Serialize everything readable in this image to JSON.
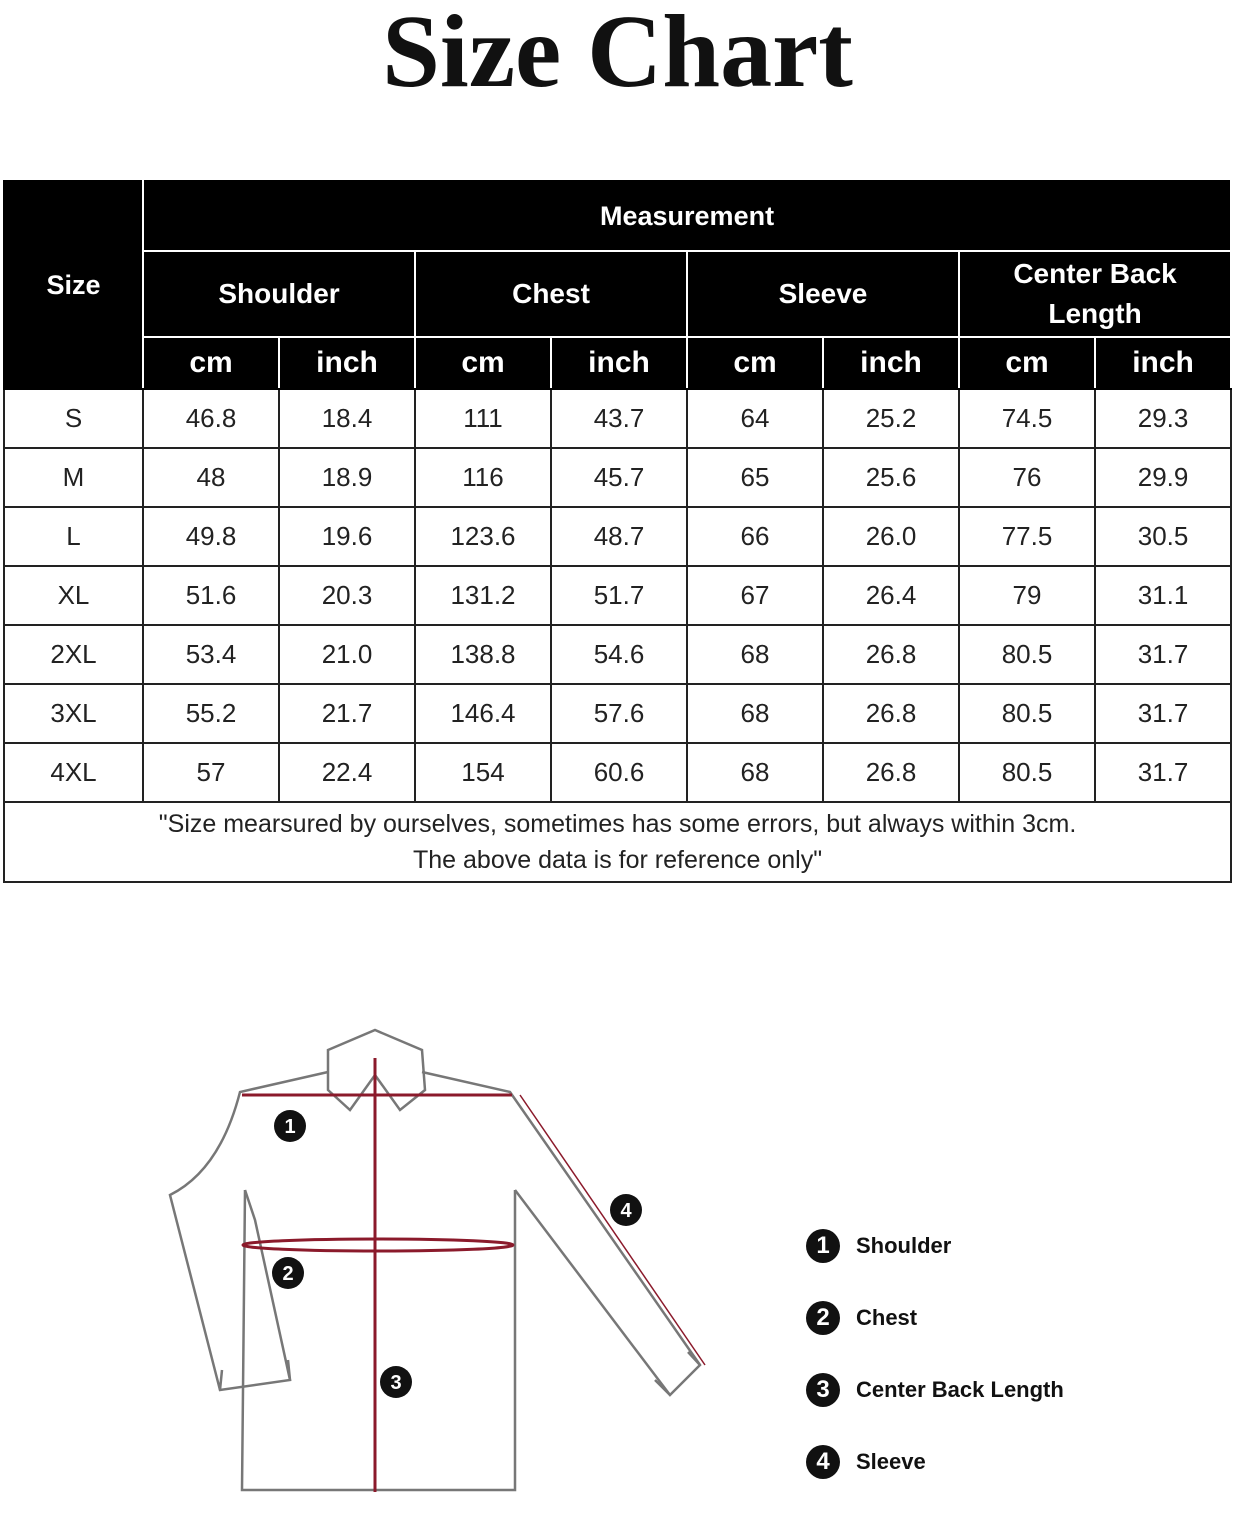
{
  "title": "Size Chart",
  "table": {
    "size_header": "Size",
    "group_header": "Measurement",
    "measures": [
      "Shoulder",
      "Chest",
      "Sleeve",
      "Center Back Length"
    ],
    "units": [
      "cm",
      "inch",
      "cm",
      "inch",
      "cm",
      "inch",
      "cm",
      "inch"
    ],
    "rows": [
      [
        "S",
        "46.8",
        "18.4",
        "111",
        "43.7",
        "64",
        "25.2",
        "74.5",
        "29.3"
      ],
      [
        "M",
        "48",
        "18.9",
        "116",
        "45.7",
        "65",
        "25.6",
        "76",
        "29.9"
      ],
      [
        "L",
        "49.8",
        "19.6",
        "123.6",
        "48.7",
        "66",
        "26.0",
        "77.5",
        "30.5"
      ],
      [
        "XL",
        "51.6",
        "20.3",
        "131.2",
        "51.7",
        "67",
        "26.4",
        "79",
        "31.1"
      ],
      [
        "2XL",
        "53.4",
        "21.0",
        "138.8",
        "54.6",
        "68",
        "26.8",
        "80.5",
        "31.7"
      ],
      [
        "3XL",
        "55.2",
        "21.7",
        "146.4",
        "57.6",
        "68",
        "26.8",
        "80.5",
        "31.7"
      ],
      [
        "4XL",
        "57",
        "22.4",
        "154",
        "60.6",
        "68",
        "26.8",
        "80.5",
        "31.7"
      ]
    ],
    "note_line1": "\"Size mearsured by ourselves, sometimes has some errors, but always within 3cm.",
    "note_line2": "The above data is for reference only\""
  },
  "diagram": {
    "markers": [
      "1",
      "2",
      "3",
      "4"
    ]
  },
  "legend": [
    {
      "num": "1",
      "label": "Shoulder"
    },
    {
      "num": "2",
      "label": "Chest"
    },
    {
      "num": "3",
      "label": "Center Back Length"
    },
    {
      "num": "4",
      "label": "Sleeve"
    }
  ],
  "colors": {
    "header_bg": "#000000",
    "measure_line": "#8b1a2b"
  }
}
